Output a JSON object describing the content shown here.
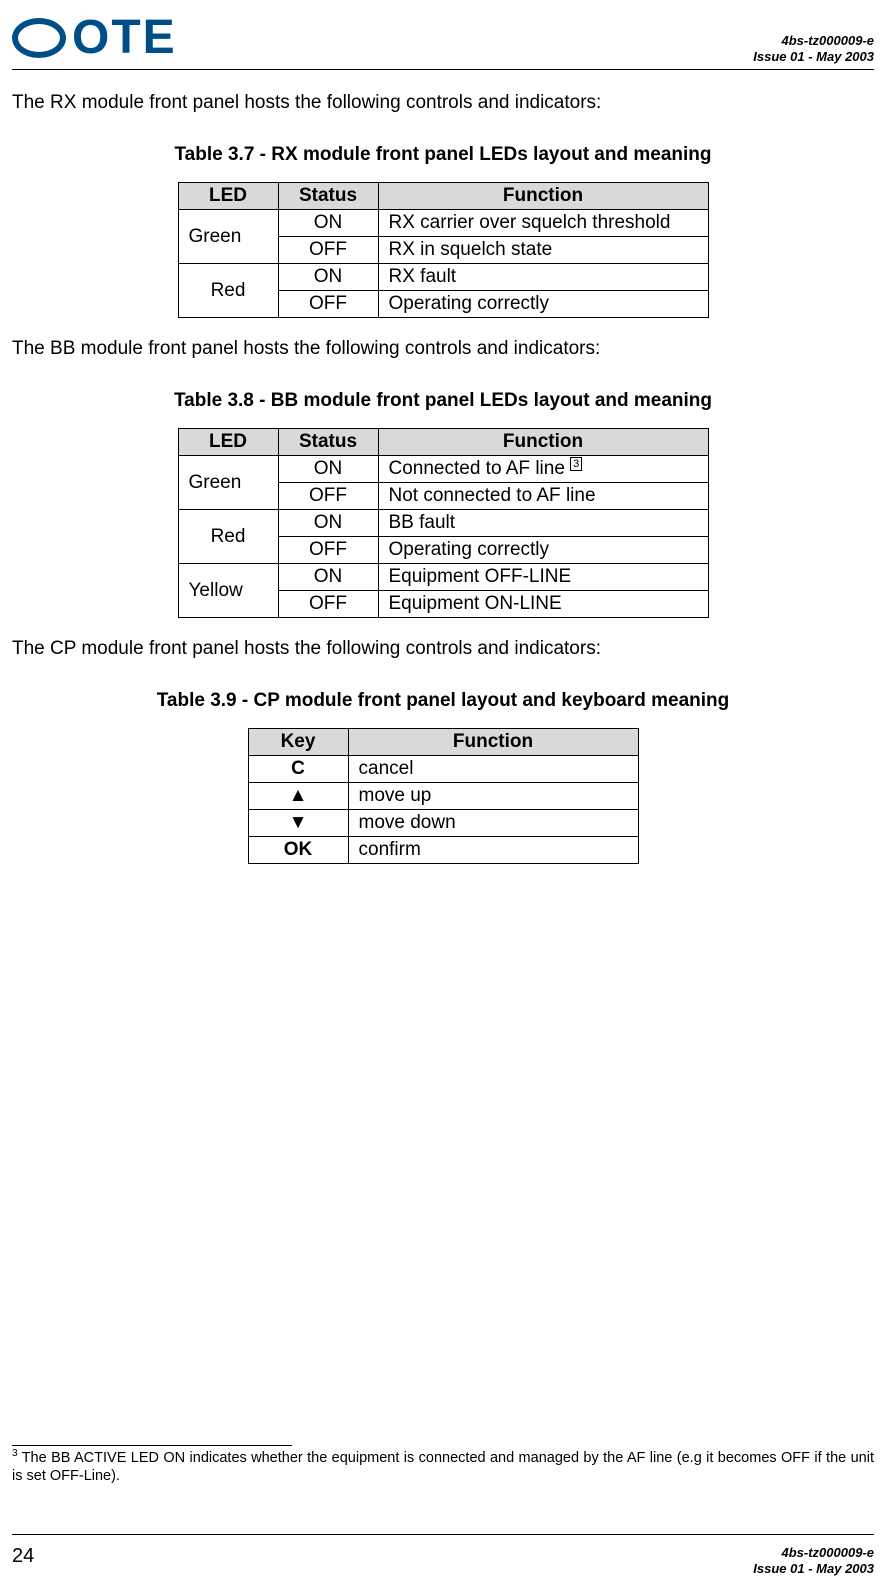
{
  "header": {
    "logo_text": "OTE",
    "doc_ref": "4bs-tz000009-e",
    "issue": "Issue 01 - May 2003"
  },
  "p1": "The RX module front panel hosts the following controls and indicators:",
  "t37": {
    "caption": "Table 3.7 - RX module front panel LEDs layout and meaning",
    "cols": {
      "led": "LED",
      "status": "Status",
      "func": "Function"
    },
    "rows": [
      {
        "led": "Green",
        "status": "ON",
        "func": "RX carrier over squelch threshold"
      },
      {
        "led": "",
        "status": "OFF",
        "func": "RX in squelch state"
      },
      {
        "led": "Red",
        "status": "ON",
        "func": "RX fault"
      },
      {
        "led": "",
        "status": "OFF",
        "func": "Operating correctly"
      }
    ]
  },
  "p2": "The BB module front panel hosts the following controls and indicators:",
  "t38": {
    "caption": "Table 3.8 - BB module front panel LEDs layout and meaning",
    "cols": {
      "led": "LED",
      "status": "Status",
      "func": "Function"
    },
    "rows": [
      {
        "led": "Green",
        "status": "ON",
        "func": "Connected to AF line ",
        "sup": "3"
      },
      {
        "led": "",
        "status": "OFF",
        "func": "Not connected to AF line"
      },
      {
        "led": "Red",
        "status": "ON",
        "func": "BB fault"
      },
      {
        "led": "",
        "status": "OFF",
        "func": "Operating correctly"
      },
      {
        "led": "Yellow",
        "status": "ON",
        "func": "Equipment OFF-LINE"
      },
      {
        "led": "",
        "status": "OFF",
        "func": "Equipment ON-LINE"
      }
    ]
  },
  "p3": "The CP module front panel hosts the following controls and indicators:",
  "t39": {
    "caption": "Table 3.9 - CP module front panel layout and keyboard meaning",
    "cols": {
      "key": "Key",
      "func": "Function"
    },
    "rows": [
      {
        "key": "C",
        "func": "cancel"
      },
      {
        "key": "▲",
        "func": "move up"
      },
      {
        "key": "▼",
        "func": "move down"
      },
      {
        "key": "OK",
        "func": "confirm"
      }
    ]
  },
  "footnote": {
    "num": "3",
    "text": " The BB ACTIVE LED ON indicates whether the equipment is connected and managed by the AF line (e.g it becomes OFF if the unit is set OFF-Line)."
  },
  "footer": {
    "page": "24",
    "doc_ref": "4bs-tz000009-e",
    "issue": "Issue 01 - May 2003"
  }
}
